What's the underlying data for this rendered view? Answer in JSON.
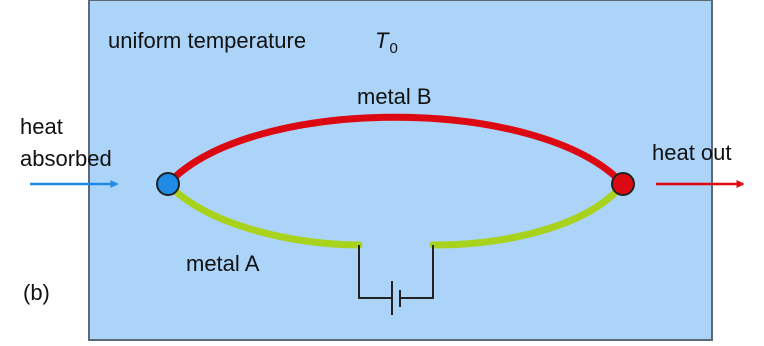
{
  "diagram": {
    "environment_label": "uniform temperature",
    "temperature_symbol": "T",
    "temperature_subscript": "0",
    "metal_b_label": "metal B",
    "metal_a_label": "metal A",
    "heat_in_line1": "heat",
    "heat_in_line2": "absorbed",
    "heat_out_label": "heat out",
    "panel_label": "(b)"
  },
  "colors": {
    "panel_fill": "#acd4f8",
    "panel_border": "#5c6a78",
    "metal_b": "#dc0912",
    "metal_a": "#a8d21c",
    "cold_junction": "#1f8be6",
    "hot_junction": "#dc0912",
    "heat_in_arrow": "#1f8be6",
    "heat_out_arrow": "#dc0912",
    "circuit": "#222222"
  }
}
